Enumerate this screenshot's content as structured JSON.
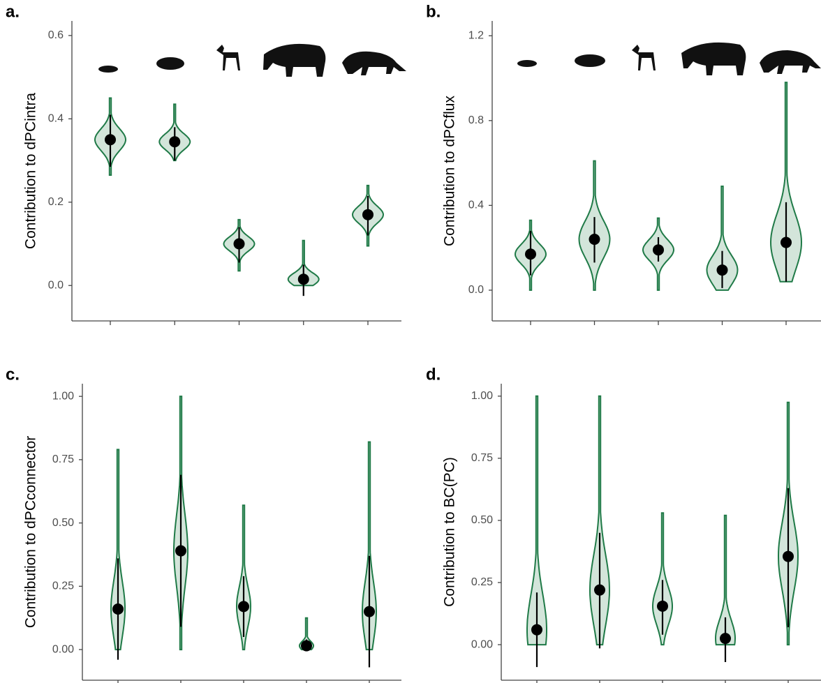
{
  "chart_data": [
    {
      "type": "violin",
      "panel_label": "a.",
      "y_label": "Contribution to dPCintra",
      "categories": [
        null,
        null,
        null,
        null,
        null
      ],
      "values": [
        0.35,
        0.345,
        0.1,
        0.015,
        0.17
      ],
      "error_low": [
        0.285,
        0.3,
        0.055,
        -0.025,
        0.12
      ],
      "error_high": [
        0.41,
        0.38,
        0.14,
        0.05,
        0.215
      ],
      "violin_min": [
        0.265,
        0.3,
        0.035,
        0.0,
        0.095
      ],
      "violin_max": [
        0.45,
        0.435,
        0.158,
        0.108,
        0.24
      ],
      "ylim": [
        -0.085,
        0.635
      ],
      "yticks": [
        {
          "value": 0,
          "label": "0.0"
        },
        0.2,
        0.4,
        0.6
      ]
    },
    {
      "type": "violin",
      "panel_label": "b.",
      "y_label": "Contribution to dPCflux",
      "categories": [
        null,
        null,
        null,
        null,
        null
      ],
      "values": [
        0.17,
        0.24,
        0.19,
        0.095,
        0.225
      ],
      "error_low": [
        0.07,
        0.13,
        0.135,
        0.01,
        0.04
      ],
      "error_high": [
        0.28,
        0.345,
        0.25,
        0.185,
        0.415
      ],
      "violin_min": [
        0.0,
        0.0,
        0.0,
        0.0,
        0.04
      ],
      "violin_max": [
        0.33,
        0.61,
        0.34,
        0.49,
        0.98
      ],
      "ylim": [
        -0.145,
        1.27
      ],
      "yticks": [
        {
          "value": 0,
          "label": "0.0"
        },
        0.4,
        0.8,
        1.2
      ]
    },
    {
      "type": "violin",
      "panel_label": "c.",
      "y_label": "Contribution to dPCconnector",
      "categories": [
        null,
        null,
        null,
        null,
        null
      ],
      "values": [
        0.16,
        0.39,
        0.17,
        0.015,
        0.15
      ],
      "error_low": [
        -0.04,
        0.09,
        0.05,
        -0.005,
        -0.07
      ],
      "error_high": [
        0.36,
        0.69,
        0.29,
        0.04,
        0.37
      ],
      "violin_min": [
        0.0,
        0.0,
        0.0,
        0.0,
        0.0
      ],
      "violin_max": [
        0.79,
        1.0,
        0.57,
        0.125,
        0.82
      ],
      "ylim": [
        -0.121,
        1.05
      ],
      "yticks": [
        {
          "value": 0,
          "label": "0.00"
        },
        0.25,
        {
          "value": 0.5,
          "label": "0.50"
        },
        0.75,
        {
          "value": 1,
          "label": "1.00"
        }
      ]
    },
    {
      "type": "violin",
      "panel_label": "d.",
      "y_label": "Contribution to BC(PC)",
      "categories": [
        null,
        null,
        null,
        null,
        null
      ],
      "values": [
        0.06,
        0.22,
        0.155,
        0.025,
        0.355
      ],
      "error_low": [
        -0.09,
        -0.015,
        0.04,
        -0.07,
        0.07
      ],
      "error_high": [
        0.21,
        0.45,
        0.26,
        0.11,
        0.63
      ],
      "violin_min": [
        0.0,
        0.0,
        0.0,
        0.0,
        0.0
      ],
      "violin_max": [
        1.0,
        1.0,
        0.53,
        0.52,
        0.975
      ],
      "ylim": [
        -0.143,
        1.05
      ],
      "yticks": [
        {
          "value": 0,
          "label": "0.00"
        },
        0.25,
        {
          "value": 0.5,
          "label": "0.50"
        },
        0.75,
        {
          "value": 1,
          "label": "1.00"
        }
      ]
    }
  ]
}
